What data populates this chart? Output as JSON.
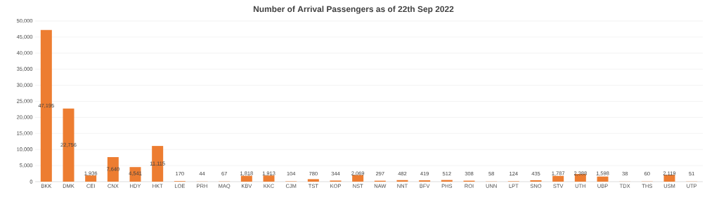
{
  "chart_data": {
    "type": "bar",
    "title": "Number of Arrival Passengers as of 22th Sep 2022",
    "categories": [
      "BKK",
      "DMK",
      "CEI",
      "CNX",
      "HDY",
      "HKT",
      "LOE",
      "PRH",
      "MAQ",
      "KBV",
      "KKC",
      "CJM",
      "TST",
      "KOP",
      "NST",
      "NAW",
      "NNT",
      "BFV",
      "PHS",
      "ROI",
      "UNN",
      "LPT",
      "SNO",
      "STV",
      "UTH",
      "UBP",
      "TDX",
      "THS",
      "USM",
      "UTP"
    ],
    "values": [
      47195,
      22756,
      1936,
      7640,
      4541,
      11115,
      170,
      44,
      67,
      1818,
      1913,
      104,
      780,
      344,
      2069,
      297,
      482,
      419,
      512,
      308,
      58,
      124,
      435,
      1787,
      2388,
      1598,
      38,
      60,
      2119,
      51
    ],
    "value_labels": [
      "47,195",
      "22,756",
      "1,936",
      "7,640",
      "4,541",
      "11,115",
      "170",
      "44",
      "67",
      "1,818",
      "1,913",
      "104",
      "780",
      "344",
      "2,069",
      "297",
      "482",
      "419",
      "512",
      "308",
      "58",
      "124",
      "435",
      "1,787",
      "2,388",
      "1,598",
      "38",
      "60",
      "2,119",
      "51"
    ],
    "color": "#ed7d31",
    "ylim": [
      0,
      50000
    ],
    "yticks": [
      {
        "value": 0,
        "label": "0"
      },
      {
        "value": 5000,
        "label": "5,000"
      },
      {
        "value": 10000,
        "label": "10,000"
      },
      {
        "value": 15000,
        "label": "15,000"
      },
      {
        "value": 20000,
        "label": "20,000"
      },
      {
        "value": 25000,
        "label": "25,000"
      },
      {
        "value": 30000,
        "label": "30,000"
      },
      {
        "value": 35000,
        "label": "35,000"
      },
      {
        "value": 40000,
        "label": "40,000"
      },
      {
        "value": 45000,
        "label": "45,000"
      },
      {
        "value": 50000,
        "label": "50,000"
      }
    ],
    "grid": "y"
  }
}
